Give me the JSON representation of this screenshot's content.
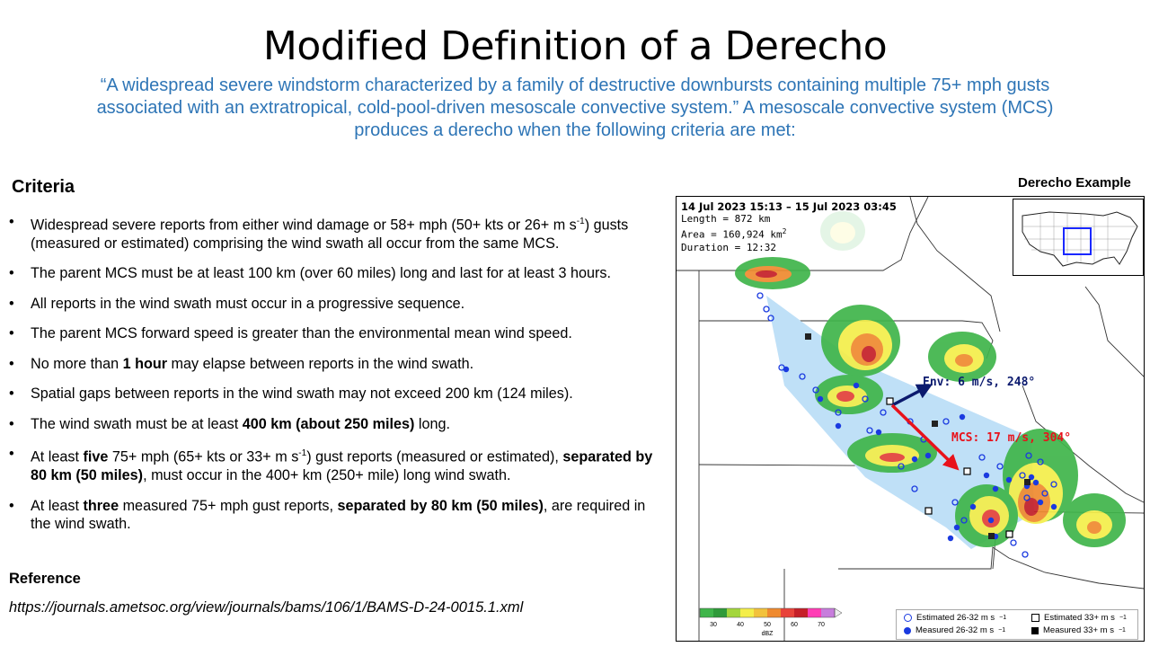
{
  "slide": {
    "title": "Modified Definition of a Derecho",
    "subtitle": "“A widespread severe windstorm characterized by a family of destructive downbursts containing multiple 75+ mph gusts associated with an extratropical, cold-pool-driven mesoscale convective system.” A mesoscale convective system (MCS) produces a derecho when the following criteria are met:",
    "criteria_heading": "Criteria",
    "criteria": [
      [
        "Widespread severe reports from either wind damage or 58+ mph (50+ kts or 26+ m s",
        {
          "sup": "-1"
        },
        ") gusts (measured or estimated) comprising the wind swath all occur from the same MCS."
      ],
      [
        "The parent MCS must be at least 100 km (over 60 miles) long and last for at least 3 hours."
      ],
      [
        "All reports in the wind swath must occur in a progressive sequence."
      ],
      [
        "The parent MCS forward speed is greater than the environmental mean wind speed."
      ],
      [
        "No more than ",
        {
          "b": "1 hour"
        },
        " may elapse between reports in the wind swath."
      ],
      [
        "Spatial gaps between reports in the wind swath may not exceed 200 km (124 miles)."
      ],
      [
        "The wind swath must be at least ",
        {
          "b": "400 km (about 250 miles)"
        },
        " long."
      ],
      [
        "At least ",
        {
          "b": "five"
        },
        " 75+ mph (65+ kts or 33+ m s",
        {
          "sup": "-1"
        },
        ") gust reports (measured or estimated), ",
        {
          "b": "separated by 80 km (50 miles)"
        },
        ", must occur in the 400+ km (250+ mile) long wind swath."
      ],
      [
        "At least ",
        {
          "b": "three"
        },
        " measured 75+ mph gust reports, ",
        {
          "b": "separated by 80 km (50 miles)"
        },
        ", are required in the wind swath."
      ]
    ],
    "reference_heading": "Reference",
    "reference_url": "https://journals.ametsoc.org/view/journals/bams/106/1/BAMS-D-24-0015.1.xml"
  },
  "example": {
    "label": "Derecho Example",
    "header": "14 Jul 2023 15:13 – 15 Jul 2023 03:45",
    "length": "Length = 872 km",
    "area_prefix": "Area = 160,924 km",
    "area_sup": "2",
    "duration": "Duration = 12:32",
    "env_label": "Env: 6 m/s, 248°",
    "mcs_label": "MCS: 17 m/s, 304°",
    "env_color": "#0b1a6e",
    "mcs_color": "#e8121b",
    "swath_color": "#bfe0f7",
    "colorbar": {
      "ticks": [
        "30",
        "40",
        "50",
        "60",
        "70"
      ],
      "unit": "dBZ",
      "colors": [
        "#3fb54a",
        "#2f9a3a",
        "#a3d63c",
        "#f4ee4a",
        "#f2c23c",
        "#ef8a2f",
        "#e8433a",
        "#c51f28",
        "#ff3db5",
        "#c77ddc"
      ]
    },
    "legend": {
      "est_small": "Estimated 26-32 m s",
      "meas_small": "Measured 26-32 m s",
      "est_large": "Estimated 33+ m s",
      "meas_large": "Measured 33+ m s",
      "unit_sup": "−1"
    }
  }
}
